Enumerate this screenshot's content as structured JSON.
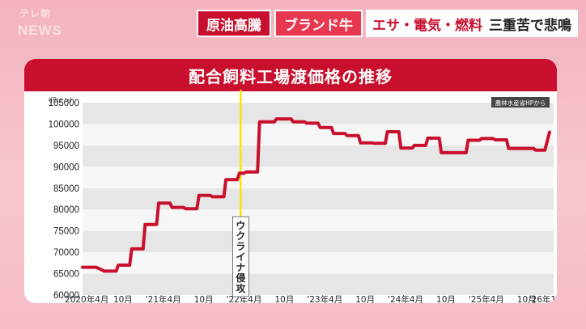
{
  "logo": {
    "top": "テレ朝",
    "bottom": "NEWS"
  },
  "headline": {
    "tag1": "原油高騰",
    "tag2": "ブランド牛",
    "text_red": "エサ・電気・燃料",
    "text_black": "三重苦で悲鳴"
  },
  "chart_data": {
    "type": "line",
    "title": "配合飼料工場渡価格の推移",
    "ylabel": "(円/トン)",
    "source": "農林水産省HPから",
    "ylim": [
      60000,
      105000
    ],
    "yticks": [
      60000,
      65000,
      70000,
      75000,
      80000,
      85000,
      90000,
      95000,
      100000,
      105000
    ],
    "xlim": [
      0,
      70
    ],
    "xticks": [
      {
        "x": 0,
        "label": "2020年4月"
      },
      {
        "x": 6,
        "label": "10月"
      },
      {
        "x": 12,
        "label": "'21年4月"
      },
      {
        "x": 18,
        "label": "10月"
      },
      {
        "x": 24,
        "label": "'22年4月"
      },
      {
        "x": 30,
        "label": "10月"
      },
      {
        "x": 36,
        "label": "'23年4月"
      },
      {
        "x": 42,
        "label": "10月"
      },
      {
        "x": 48,
        "label": "'24年4月"
      },
      {
        "x": 54,
        "label": "10月"
      },
      {
        "x": 60,
        "label": "'25年4月"
      },
      {
        "x": 66,
        "label": "10月"
      },
      {
        "x": 69,
        "label": "'26年1月"
      }
    ],
    "annotation": {
      "x": 23.5,
      "label": "ウクライナ侵攻"
    },
    "series": [
      {
        "x": [
          0,
          1.5,
          2,
          3,
          3.2,
          5,
          5.3,
          7,
          7.3,
          9,
          9.3,
          11,
          11.3,
          13,
          13.3,
          15,
          15.3,
          17,
          17.3,
          19,
          19.3,
          21,
          21.3,
          23,
          23.3,
          24,
          24.3,
          26,
          26.3,
          27,
          27.3,
          28.5,
          28.8,
          31,
          31.3,
          33,
          33.3,
          35,
          35.3,
          37,
          37.3,
          39,
          39.3,
          41,
          41.3,
          43,
          43.3,
          45,
          45.3,
          47,
          47.3,
          49,
          49.3,
          51,
          51.3,
          53,
          53.3,
          55,
          55.3,
          57,
          57.3,
          59,
          59.3,
          61,
          61.3,
          63,
          63.3,
          65,
          65.3,
          67,
          67.3,
          68.7,
          69.4
        ],
        "y": [
          66500,
          66500,
          66500,
          65800,
          65600,
          65600,
          67000,
          67000,
          70800,
          70800,
          76500,
          76500,
          81500,
          81500,
          80500,
          80500,
          80200,
          80200,
          83300,
          83300,
          83000,
          83000,
          87000,
          87000,
          88500,
          88500,
          88800,
          88800,
          100500,
          100500,
          100500,
          100500,
          101200,
          101200,
          100500,
          100500,
          100200,
          100200,
          99200,
          99200,
          97800,
          97800,
          97300,
          97300,
          95600,
          95600,
          95500,
          95500,
          98200,
          98200,
          94400,
          94400,
          95000,
          95000,
          96700,
          96700,
          93300,
          93300,
          93300,
          93300,
          96200,
          96200,
          96600,
          96600,
          96300,
          96300,
          94300,
          94300,
          94300,
          94300,
          93900,
          93900,
          98100
        ]
      }
    ]
  },
  "colors": {
    "accent": "#c8102e",
    "line": "#c8102e",
    "annotation_line": "#f5e800",
    "band": "#e6e6e6"
  }
}
